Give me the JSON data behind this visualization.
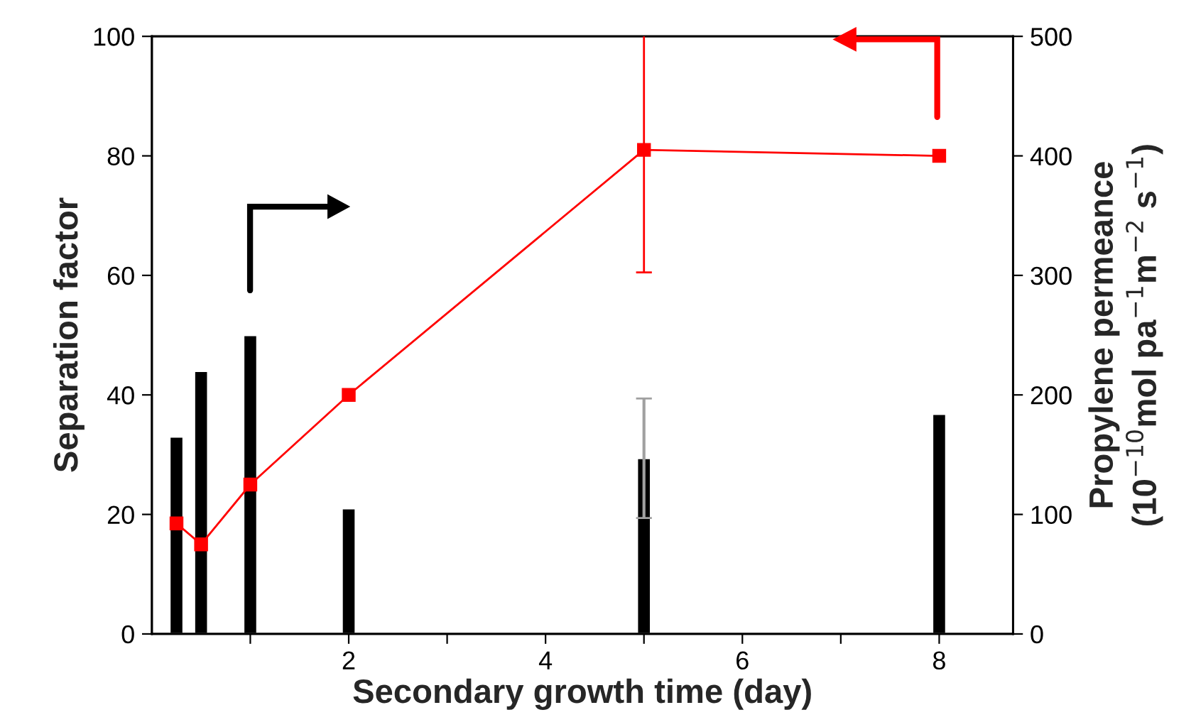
{
  "chart_data": {
    "type": "line",
    "xlabel": "Secondary growth time (day)",
    "ylabel": "Separation factor",
    "y2label": "Propylene permeance\n(10$^{−10}$mol pa$^{−1}$m$^{−2}$ s$^{−1}$)",
    "x": [
      0.25,
      0.5,
      1,
      2,
      5,
      8
    ],
    "series": [
      {
        "type": "bar",
        "axis": "y2",
        "color": "#000000",
        "values": [
          165,
          220,
          250,
          105,
          147,
          184
        ],
        "errors": [
          null,
          null,
          null,
          null,
          50,
          null
        ]
      },
      {
        "color": "#ff0000",
        "marker": "square",
        "line_style": "solid",
        "values": [
          18.5,
          15,
          25,
          40,
          81,
          80
        ],
        "errors": [
          null,
          null,
          null,
          null,
          20.5,
          null
        ]
      }
    ],
    "xlim": [
      0,
      8.75
    ],
    "xticks": [
      {
        "value": 1,
        "label": null
      },
      2,
      {
        "value": 3,
        "label": null
      },
      4,
      {
        "value": 5,
        "label": null
      },
      6,
      {
        "value": 7,
        "label": null
      },
      8
    ],
    "ylim": [
      0,
      100
    ],
    "yticks": [
      0,
      20,
      40,
      60,
      80,
      100
    ],
    "y2lim": [
      0,
      500
    ],
    "y2ticks": [
      0,
      100,
      200,
      300,
      400,
      500
    ],
    "grid": false,
    "legend": false
  }
}
